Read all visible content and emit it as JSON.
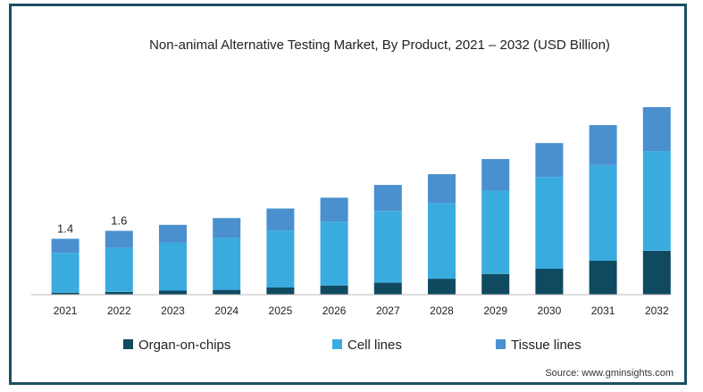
{
  "chart_data": {
    "type": "bar",
    "stacked": true,
    "title": "Non-animal Alternative Testing Market, By Product, 2021 – 2032 (USD Billion)",
    "categories": [
      "2021",
      "2022",
      "2023",
      "2024",
      "2025",
      "2026",
      "2027",
      "2028",
      "2029",
      "2030",
      "2031",
      "2032"
    ],
    "series": [
      {
        "name": "Organ-on-chips",
        "color": "#0f4a61",
        "values": [
          0.05,
          0.07,
          0.1,
          0.12,
          0.18,
          0.23,
          0.3,
          0.4,
          0.52,
          0.65,
          0.85,
          1.1
        ]
      },
      {
        "name": "Cell lines",
        "color": "#3aabdf",
        "values": [
          1.0,
          1.1,
          1.2,
          1.3,
          1.43,
          1.6,
          1.8,
          1.9,
          2.1,
          2.3,
          2.4,
          2.5
        ]
      },
      {
        "name": "Tissue lines",
        "color": "#4a8fce",
        "values": [
          0.35,
          0.43,
          0.45,
          0.5,
          0.55,
          0.6,
          0.65,
          0.72,
          0.78,
          0.85,
          1.0,
          1.1
        ]
      }
    ],
    "data_labels": [
      {
        "category": "2021",
        "text": "1.4"
      },
      {
        "category": "2022",
        "text": "1.6"
      }
    ],
    "legend_position": "bottom",
    "grid": false,
    "ylim": [
      0,
      4.7
    ]
  },
  "source": "Source: www.gminsights.com"
}
